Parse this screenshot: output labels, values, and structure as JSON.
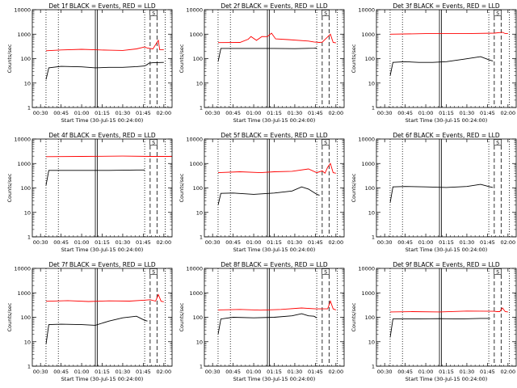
{
  "figure": {
    "title_suffix": " BLACK = Events, RED = LLD"
  },
  "chart_data": [
    {
      "type": "line",
      "title": "Det 1f BLACK = Events, RED = LLD",
      "xlabel": "Start Time (30-Jul-15 00:24:00)",
      "ylabel": "Counts/sec",
      "yscale": "log",
      "ylim": [
        1,
        10000
      ],
      "xticks": [
        "00:30",
        "00:45",
        "01:00",
        "01:15",
        "01:30",
        "01:45",
        "02:00"
      ],
      "yticks": [
        "1",
        "10",
        "100",
        "1000",
        "10000"
      ],
      "x_start_min": 24,
      "x_end_min": 126,
      "marker_label": "S",
      "series": [
        {
          "name": "Events",
          "color": "#000000",
          "x": [
            34,
            36,
            45,
            60,
            70,
            80,
            90,
            100,
            106,
            108,
            109,
            112,
            120
          ],
          "y": [
            14,
            42,
            48,
            46,
            42,
            44,
            44,
            47,
            50,
            58,
            65,
            68,
            70
          ]
        },
        {
          "name": "LLD",
          "color": "#ff0000",
          "x": [
            34,
            45,
            60,
            70,
            80,
            90,
            100,
            106,
            108,
            112,
            116,
            117,
            120
          ],
          "y": [
            210,
            225,
            240,
            230,
            220,
            215,
            250,
            300,
            270,
            250,
            560,
            230,
            230
          ]
        }
      ]
    },
    {
      "type": "line",
      "title": "Det 2f BLACK = Events, RED = LLD",
      "xlabel": "Start Time (30-Jul-15 00:24:00)",
      "ylabel": "Counts/sec",
      "yscale": "log",
      "ylim": [
        1,
        10000
      ],
      "xticks": [
        "00:30",
        "00:45",
        "01:00",
        "01:15",
        "01:30",
        "01:45",
        "02:00"
      ],
      "yticks": [
        "1",
        "10",
        "100",
        "1000",
        "10000"
      ],
      "x_start_min": 24,
      "x_end_min": 126,
      "marker_label": "S",
      "series": [
        {
          "name": "Events",
          "color": "#000000",
          "x": [
            34,
            36,
            60,
            75,
            90,
            104,
            106
          ],
          "y": [
            75,
            260,
            260,
            260,
            255,
            265,
            270
          ]
        },
        {
          "name": "LLD",
          "color": "#ff0000",
          "x": [
            34,
            50,
            56,
            58,
            62,
            66,
            70,
            73,
            76,
            85,
            100,
            104,
            108,
            110,
            116,
            118,
            120
          ],
          "y": [
            450,
            460,
            620,
            800,
            560,
            800,
            790,
            1100,
            640,
            600,
            520,
            480,
            460,
            470,
            1000,
            460,
            440
          ]
        }
      ]
    },
    {
      "type": "line",
      "title": "Det 3f BLACK = Events, RED = LLD",
      "xlabel": "Start Time (30-Jul-15 00:24:00)",
      "ylabel": "Counts/sec",
      "yscale": "log",
      "ylim": [
        1,
        10000
      ],
      "xticks": [
        "00:30",
        "00:45",
        "01:00",
        "01:15",
        "01:30",
        "01:45",
        "02:00"
      ],
      "yticks": [
        "1",
        "10",
        "100",
        "1000",
        "10000"
      ],
      "x_start_min": 24,
      "x_end_min": 126,
      "marker_label": "S",
      "series": [
        {
          "name": "Events",
          "color": "#000000",
          "x": [
            34,
            36,
            45,
            55,
            65,
            75,
            88,
            100,
            107,
            109
          ],
          "y": [
            20,
            70,
            75,
            70,
            70,
            75,
            95,
            120,
            85,
            80
          ]
        },
        {
          "name": "LLD",
          "color": "#ff0000",
          "x": [
            34,
            60,
            90,
            110,
            116,
            118,
            120
          ],
          "y": [
            1000,
            1050,
            1050,
            1100,
            1200,
            1050,
            1050
          ]
        }
      ]
    },
    {
      "type": "line",
      "title": "Det 4f BLACK = Events, RED = LLD",
      "xlabel": "Start Time (30-Jul-15 00:24:00)",
      "ylabel": "Counts/sec",
      "yscale": "log",
      "ylim": [
        1,
        10000
      ],
      "xticks": [
        "00:30",
        "00:45",
        "01:00",
        "01:15",
        "01:30",
        "01:45",
        "02:00"
      ],
      "yticks": [
        "1",
        "10",
        "100",
        "1000",
        "10000"
      ],
      "x_start_min": 24,
      "x_end_min": 126,
      "marker_label": "S",
      "series": [
        {
          "name": "Events",
          "color": "#000000",
          "x": [
            34,
            36,
            60,
            80,
            100,
            106
          ],
          "y": [
            130,
            520,
            520,
            520,
            540,
            540
          ]
        },
        {
          "name": "LLD",
          "color": "#ff0000",
          "x": [
            34,
            60,
            90,
            110,
            126
          ],
          "y": [
            1900,
            1950,
            2000,
            1950,
            1950
          ]
        }
      ]
    },
    {
      "type": "line",
      "title": "Det 5f BLACK = Events, RED = LLD",
      "xlabel": "Start Time (30-Jul-15 00:24:00)",
      "ylabel": "Counts/sec",
      "yscale": "log",
      "ylim": [
        1,
        10000
      ],
      "xticks": [
        "00:30",
        "00:45",
        "01:00",
        "01:15",
        "01:30",
        "01:45",
        "02:00"
      ],
      "yticks": [
        "1",
        "10",
        "100",
        "1000",
        "10000"
      ],
      "x_start_min": 24,
      "x_end_min": 126,
      "marker_label": "S",
      "series": [
        {
          "name": "Events",
          "color": "#000000",
          "x": [
            34,
            36,
            45,
            60,
            75,
            88,
            95,
            100,
            106,
            108
          ],
          "y": [
            20,
            60,
            62,
            55,
            62,
            75,
            110,
            90,
            55,
            50
          ]
        },
        {
          "name": "LLD",
          "color": "#ff0000",
          "x": [
            34,
            50,
            65,
            75,
            88,
            100,
            106,
            110,
            112,
            114,
            116,
            118,
            120
          ],
          "y": [
            420,
            460,
            420,
            460,
            480,
            600,
            420,
            500,
            400,
            700,
            1000,
            420,
            400
          ]
        }
      ]
    },
    {
      "type": "line",
      "title": "Det 6f BLACK = Events, RED = LLD",
      "xlabel": "Start Time (30-Jul-15 00:24:00)",
      "ylabel": "Counts/sec",
      "yscale": "log",
      "ylim": [
        1,
        10000
      ],
      "xticks": [
        "00:30",
        "00:45",
        "01:00",
        "01:15",
        "01:30",
        "01:45",
        "02:00"
      ],
      "yticks": [
        "1",
        "10",
        "100",
        "1000",
        "10000"
      ],
      "x_start_min": 24,
      "x_end_min": 126,
      "marker_label": "S",
      "series": [
        {
          "name": "Events",
          "color": "#000000",
          "x": [
            34,
            36,
            45,
            60,
            75,
            90,
            100,
            107,
            109
          ],
          "y": [
            25,
            110,
            115,
            110,
            105,
            115,
            140,
            110,
            105
          ]
        }
      ]
    },
    {
      "type": "line",
      "title": "Det 7f BLACK = Events, RED = LLD",
      "xlabel": "Start Time (30-Jul-15 00:24:00)",
      "ylabel": "Counts/sec",
      "yscale": "log",
      "ylim": [
        1,
        10000
      ],
      "xticks": [
        "00:30",
        "00:45",
        "01:00",
        "01:15",
        "01:30",
        "01:45",
        "02:00"
      ],
      "yticks": [
        "1",
        "10",
        "100",
        "1000",
        "10000"
      ],
      "x_start_min": 24,
      "x_end_min": 126,
      "marker_label": "S",
      "series": [
        {
          "name": "Events",
          "color": "#000000",
          "x": [
            34,
            36,
            45,
            60,
            70,
            80,
            90,
            100,
            106,
            108
          ],
          "y": [
            8,
            50,
            52,
            50,
            47,
            70,
            95,
            110,
            75,
            70
          ]
        },
        {
          "name": "LLD",
          "color": "#ff0000",
          "x": [
            34,
            50,
            65,
            80,
            95,
            105,
            110,
            114,
            116,
            118,
            120
          ],
          "y": [
            450,
            480,
            440,
            470,
            460,
            500,
            520,
            460,
            850,
            450,
            430
          ]
        }
      ]
    },
    {
      "type": "line",
      "title": "Det 8f BLACK = Events, RED = LLD",
      "xlabel": "Start Time (30-Jul-15 00:24:00)",
      "ylabel": "Counts/sec",
      "yscale": "log",
      "ylim": [
        1,
        10000
      ],
      "xticks": [
        "00:30",
        "00:45",
        "01:00",
        "01:15",
        "01:30",
        "01:45",
        "02:00"
      ],
      "yticks": [
        "1",
        "10",
        "100",
        "1000",
        "10000"
      ],
      "x_start_min": 24,
      "x_end_min": 126,
      "marker_label": "S",
      "series": [
        {
          "name": "Events",
          "color": "#000000",
          "x": [
            34,
            36,
            45,
            60,
            75,
            88,
            95,
            100,
            104,
            106
          ],
          "y": [
            20,
            85,
            100,
            95,
            100,
            115,
            140,
            115,
            110,
            95
          ]
        },
        {
          "name": "LLD",
          "color": "#ff0000",
          "x": [
            34,
            50,
            65,
            80,
            95,
            105,
            110,
            114,
            116,
            118,
            120
          ],
          "y": [
            200,
            210,
            195,
            210,
            240,
            220,
            220,
            220,
            460,
            220,
            200
          ]
        }
      ]
    },
    {
      "type": "line",
      "title": "Det 9f BLACK = Events, RED = LLD",
      "xlabel": "Start Time (30-Jul-15 00:24:00)",
      "ylabel": "Counts/sec",
      "yscale": "log",
      "ylim": [
        1,
        10000
      ],
      "xticks": [
        "00:30",
        "00:45",
        "01:00",
        "01:15",
        "01:30",
        "01:45",
        "02:00"
      ],
      "yticks": [
        "1",
        "10",
        "100",
        "1000",
        "10000"
      ],
      "x_start_min": 24,
      "x_end_min": 126,
      "marker_label": "S",
      "series": [
        {
          "name": "Events",
          "color": "#000000",
          "x": [
            34,
            36,
            50,
            70,
            85,
            100,
            107
          ],
          "y": [
            15,
            85,
            85,
            88,
            85,
            90,
            90
          ]
        },
        {
          "name": "LLD",
          "color": "#ff0000",
          "x": [
            34,
            50,
            70,
            90,
            110,
            112,
            114,
            116,
            118,
            120
          ],
          "y": [
            165,
            170,
            165,
            180,
            175,
            170,
            170,
            240,
            170,
            165
          ]
        }
      ]
    }
  ]
}
